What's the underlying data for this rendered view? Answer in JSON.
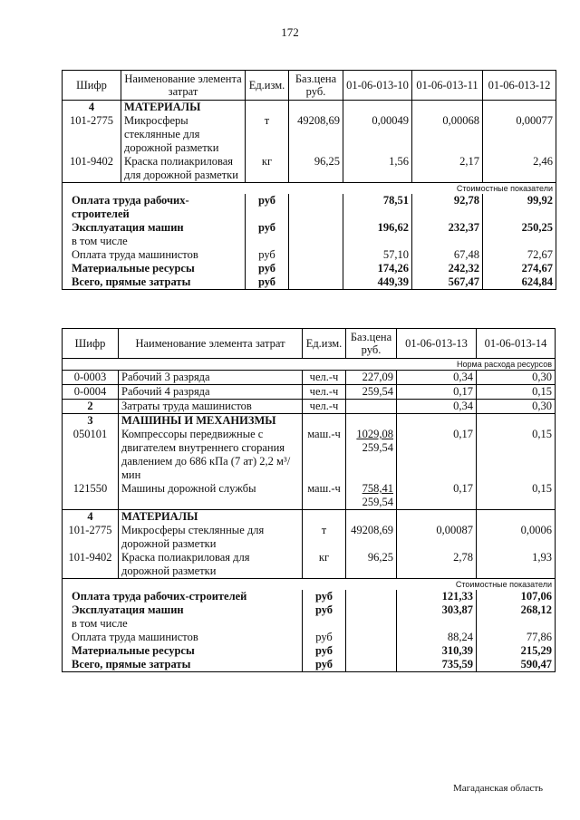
{
  "page_number": "172",
  "table1": {
    "header": [
      "Шифр",
      "Наименование элемента затрат",
      "Ед.изм.",
      "Баз.цена руб.",
      "01-06-013-10",
      "01-06-013-11",
      "01-06-013-12"
    ],
    "section": {
      "code": "4",
      "title": "МАТЕРИАЛЫ"
    },
    "rows": [
      {
        "code": "101-2775",
        "name": "Микросферы стеклянные для дорожной разметки",
        "unit": "т",
        "price": "49208,69",
        "values": [
          "0,00049",
          "0,00068",
          "0,00077"
        ]
      },
      {
        "code": "101-9402",
        "name": "Краска полиакриловая для дорожной разметки",
        "unit": "кг",
        "price": "96,25",
        "values": [
          "1,56",
          "2,17",
          "2,46"
        ]
      }
    ],
    "subheader": "Стоимостные показатели",
    "costs": [
      {
        "name": "Оплата труда рабочих-строителей",
        "unit": "руб",
        "values": [
          "78,51",
          "92,78",
          "99,92"
        ],
        "bold": true
      },
      {
        "name": "Эксплуатация машин",
        "unit": "руб",
        "values": [
          "196,62",
          "232,37",
          "250,25"
        ],
        "bold": true
      },
      {
        "name": "в том числе"
      },
      {
        "name": "Оплата труда машинистов",
        "unit": "руб",
        "values": [
          "57,10",
          "67,48",
          "72,67"
        ],
        "bold": false
      },
      {
        "name": "Материальные ресурсы",
        "unit": "руб",
        "values": [
          "174,26",
          "242,32",
          "274,67"
        ],
        "bold": true
      },
      {
        "name": "Всего, прямые затраты",
        "unit": "руб",
        "values": [
          "449,39",
          "567,47",
          "624,84"
        ],
        "bold": true
      }
    ]
  },
  "table2": {
    "header": [
      "Шифр",
      "Наименование элемента затрат",
      "Ед.изм.",
      "Баз.цена руб.",
      "01-06-013-13",
      "01-06-013-14"
    ],
    "subheader": "Норма расхода ресурсов",
    "labor": [
      {
        "code": "0-0003",
        "name": "Рабочий 3 разряда",
        "unit": "чел.-ч",
        "price": "227,09",
        "values": [
          "0,34",
          "0,30"
        ]
      },
      {
        "code": "0-0004",
        "name": "Рабочий 4 разряда",
        "unit": "чел.-ч",
        "price": "259,54",
        "values": [
          "0,17",
          "0,15"
        ]
      }
    ],
    "labor_total": {
      "code": "2",
      "name": "Затраты труда машинистов",
      "unit": "чел.-ч",
      "values": [
        "0,34",
        "0,30"
      ]
    },
    "machines": {
      "code": "3",
      "title": "МАШИНЫ И МЕХАНИЗМЫ",
      "rows": [
        {
          "code": "050101",
          "name": "Компрессоры передвижные с двигателем внутреннего сгорания давлением до 686 кПа (7 ат) 2,2 м³/мин",
          "unit": "маш.-ч",
          "prices": [
            "1029,08",
            "259,54"
          ],
          "values": [
            "0,17",
            "0,15"
          ]
        },
        {
          "code": "121550",
          "name": "Машины дорожной службы",
          "unit": "маш.-ч",
          "prices": [
            "758,41",
            "259,54"
          ],
          "values": [
            "0,17",
            "0,15"
          ]
        }
      ]
    },
    "materials": {
      "code": "4",
      "title": "МАТЕРИАЛЫ",
      "rows": [
        {
          "code": "101-2775",
          "name": "Микросферы стеклянные для дорожной разметки",
          "unit": "т",
          "price": "49208,69",
          "values": [
            "0,00087",
            "0,0006"
          ]
        },
        {
          "code": "101-9402",
          "name": "Краска полиакриловая для дорожной разметки",
          "unit": "кг",
          "price": "96,25",
          "values": [
            "2,78",
            "1,93"
          ]
        }
      ]
    },
    "cost_subheader": "Стоимостные показатели",
    "costs": [
      {
        "name": "Оплата труда рабочих-строителей",
        "unit": "руб",
        "values": [
          "121,33",
          "107,06"
        ],
        "bold": true
      },
      {
        "name": "Эксплуатация машин",
        "unit": "руб",
        "values": [
          "303,87",
          "268,12"
        ],
        "bold": true
      },
      {
        "name": "в том числе"
      },
      {
        "name": "Оплата труда машинистов",
        "unit": "руб",
        "values": [
          "88,24",
          "77,86"
        ],
        "bold": false
      },
      {
        "name": "Материальные ресурсы",
        "unit": "руб",
        "values": [
          "310,39",
          "215,29"
        ],
        "bold": true
      },
      {
        "name": "Всего, прямые затраты",
        "unit": "руб",
        "values": [
          "735,59",
          "590,47"
        ],
        "bold": true
      }
    ]
  },
  "footer": "Магаданская область"
}
